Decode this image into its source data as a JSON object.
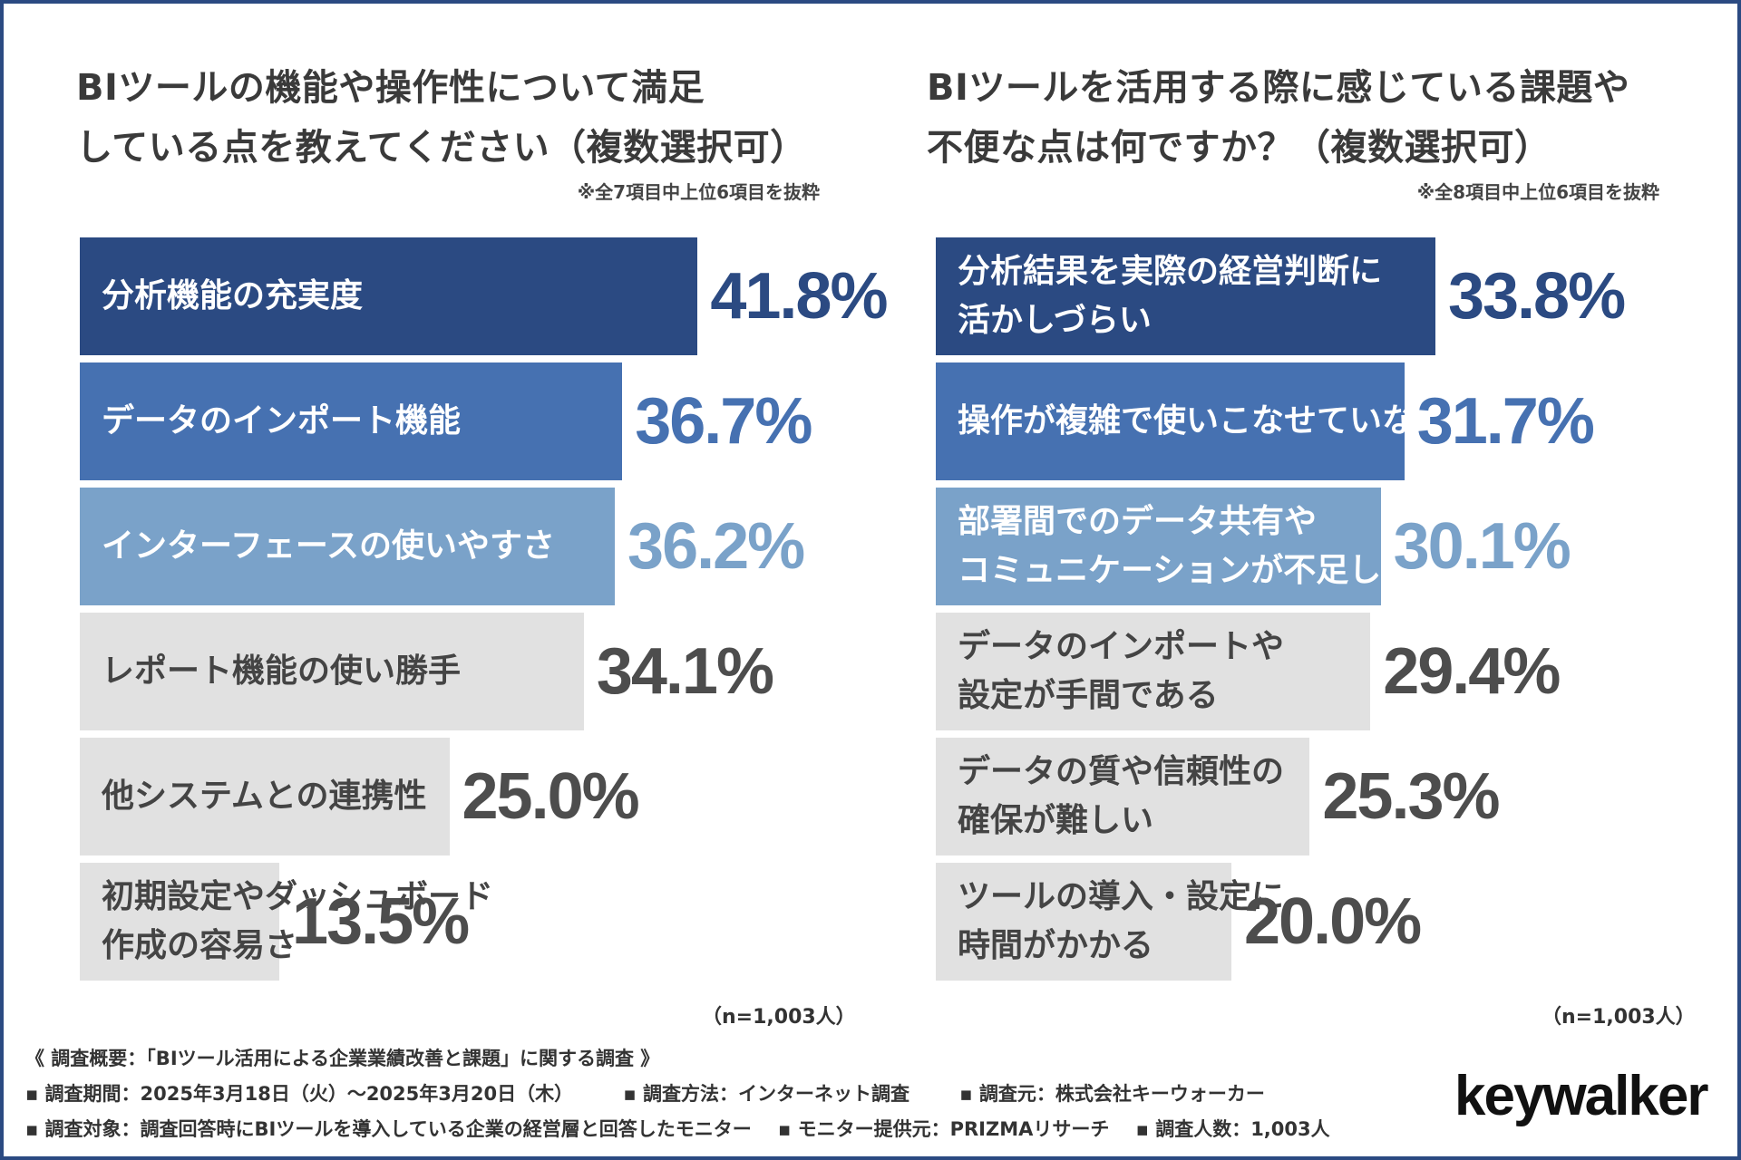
{
  "chart_data": [
    {
      "type": "bar",
      "orientation": "horizontal",
      "title": [
        "BIツールの機能や操作性について満足",
        "している点を教えてください（複数選択可）"
      ],
      "note": "※全7項目中上位6項目を抜粋",
      "unit": "%",
      "sample_size": "（n=1,003人）",
      "categories": [
        [
          "分析機能の充実度"
        ],
        [
          "データのインポート機能"
        ],
        [
          "インターフェースの使いやすさ"
        ],
        [
          "レポート機能の使い勝手"
        ],
        [
          "他システムとの連携性"
        ],
        [
          "初期設定やダッシュボード",
          "作成の容易さ"
        ]
      ],
      "values": [
        41.8,
        36.7,
        36.2,
        34.1,
        25.0,
        13.5
      ],
      "value_labels": [
        "41.8%",
        "36.7%",
        "36.2%",
        "34.1%",
        "25.0%",
        "13.5%"
      ]
    },
    {
      "type": "bar",
      "orientation": "horizontal",
      "title": [
        "BIツールを活用する際に感じている課題や",
        "不便な点は何ですか？（複数選択可）"
      ],
      "note": "※全8項目中上位6項目を抜粋",
      "unit": "%",
      "sample_size": "（n=1,003人）",
      "categories": [
        [
          "分析結果を実際の経営判断に",
          "活かしづらい"
        ],
        [
          "操作が複雑で使いこなせていない"
        ],
        [
          "部署間でのデータ共有や",
          "コミュニケーションが不足している"
        ],
        [
          "データのインポートや",
          "設定が手間である"
        ],
        [
          "データの質や信頼性の",
          "確保が難しい"
        ],
        [
          "ツールの導入・設定に",
          "時間がかかる"
        ]
      ],
      "values": [
        33.8,
        31.7,
        30.1,
        29.4,
        25.3,
        20.0
      ],
      "value_labels": [
        "33.8%",
        "31.7%",
        "30.1%",
        "29.4%",
        "25.3%",
        "20.0%"
      ]
    }
  ],
  "colors": {
    "bar_fills": [
      "#2b4a82",
      "#4671b1",
      "#7aa2c9",
      "#e1e1e1",
      "#e1e1e1",
      "#e1e1e1"
    ],
    "label_text": [
      "#ffffff",
      "#ffffff",
      "#ffffff",
      "#444444",
      "#444444",
      "#444444"
    ],
    "value_text": [
      "#2b4a82",
      "#4671b1",
      "#7aa2c9",
      "#4d4d4d",
      "#4d4d4d",
      "#4d4d4d"
    ],
    "frame": "#2b4a82"
  },
  "footer": {
    "summary": "《 調査概要：「BIツール活用による企業業績改善と課題」に関する調査 》",
    "period": "▪ 調査期間：2025年3月18日（火）～2025年3月20日（木）",
    "method": "▪ 調査方法：インターネット調査",
    "source": "▪ 調査元：株式会社キーウォーカー",
    "target": "▪ 調査対象：調査回答時にBIツールを導入している企業の経営層と回答したモニター",
    "provider": "▪ モニター提供元：PRIZMAリサーチ",
    "count": "▪ 調査人数：1,003人"
  },
  "logo": "keywalker"
}
